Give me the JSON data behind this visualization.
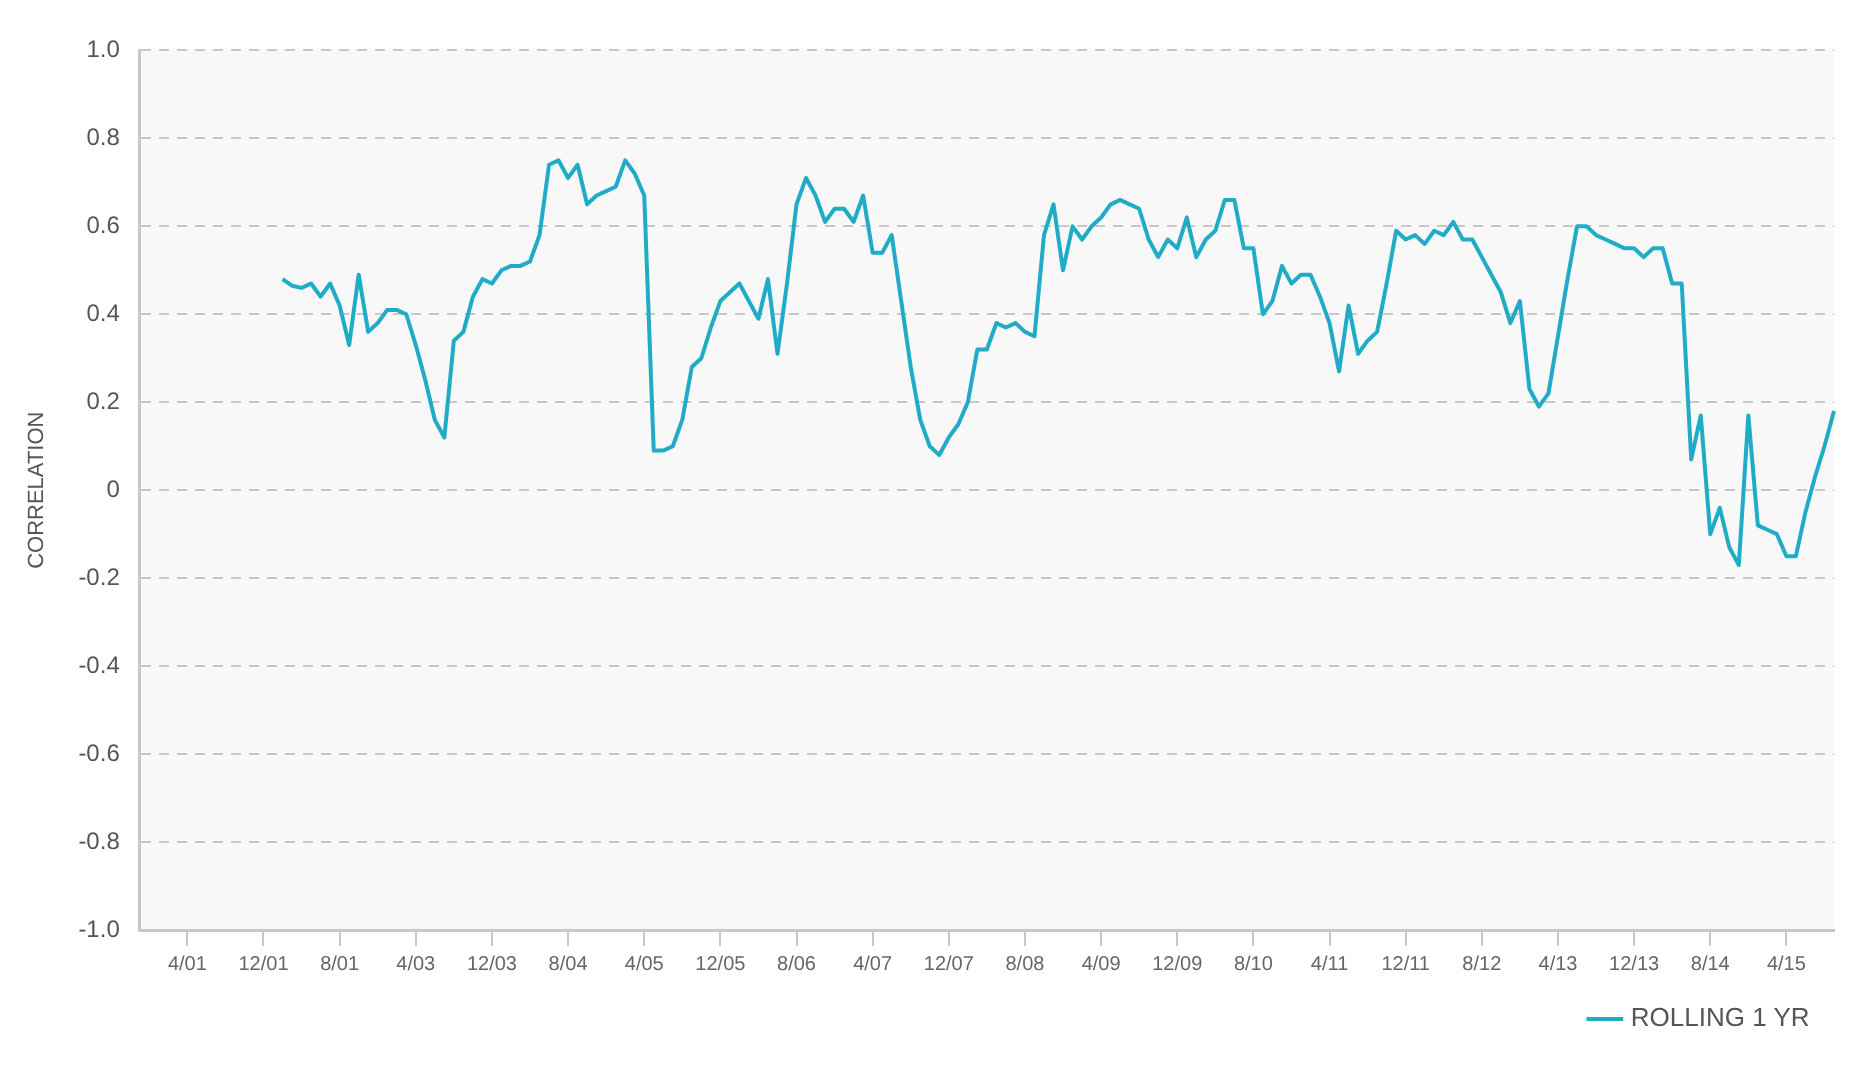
{
  "chart_data": {
    "type": "line",
    "ylabel": "CORRELATION",
    "categories": [
      null,
      null,
      null,
      null,
      null,
      "4/01",
      null,
      null,
      null,
      null,
      null,
      null,
      null,
      "12/01",
      null,
      null,
      null,
      null,
      null,
      null,
      null,
      "8/01",
      null,
      null,
      null,
      null,
      null,
      null,
      null,
      "4/03",
      null,
      null,
      null,
      null,
      null,
      null,
      null,
      "12/03",
      null,
      null,
      null,
      null,
      null,
      null,
      null,
      "8/04",
      null,
      null,
      null,
      null,
      null,
      null,
      null,
      "4/05",
      null,
      null,
      null,
      null,
      null,
      null,
      null,
      "12/05",
      null,
      null,
      null,
      null,
      null,
      null,
      null,
      "8/06",
      null,
      null,
      null,
      null,
      null,
      null,
      null,
      "4/07",
      null,
      null,
      null,
      null,
      null,
      null,
      null,
      "12/07",
      null,
      null,
      null,
      null,
      null,
      null,
      null,
      "8/08",
      null,
      null,
      null,
      null,
      null,
      null,
      null,
      "4/09",
      null,
      null,
      null,
      null,
      null,
      null,
      null,
      "12/09",
      null,
      null,
      null,
      null,
      null,
      null,
      null,
      "8/10",
      null,
      null,
      null,
      null,
      null,
      null,
      null,
      "4/11",
      null,
      null,
      null,
      null,
      null,
      null,
      null,
      "12/11",
      null,
      null,
      null,
      null,
      null,
      null,
      null,
      "8/12",
      null,
      null,
      null,
      null,
      null,
      null,
      null,
      "4/13",
      null,
      null,
      null,
      null,
      null,
      null,
      null,
      "12/13",
      null,
      null,
      null,
      null,
      null,
      null,
      null,
      "8/14",
      null,
      null,
      null,
      null,
      null,
      null,
      null,
      "4/15",
      null,
      null,
      null,
      null,
      null
    ],
    "series": [
      {
        "name": "ROLLING 1 YR",
        "color": "#20abc6",
        "values": [
          null,
          null,
          null,
          null,
          null,
          null,
          null,
          null,
          null,
          null,
          null,
          null,
          null,
          null,
          null,
          0.48,
          0.465,
          0.46,
          0.47,
          0.44,
          0.47,
          0.42,
          0.33,
          0.49,
          0.36,
          0.38,
          0.41,
          0.41,
          0.4,
          0.33,
          0.25,
          0.16,
          0.12,
          0.34,
          0.36,
          0.44,
          0.48,
          0.47,
          0.5,
          0.51,
          0.51,
          0.52,
          0.58,
          0.74,
          0.75,
          0.71,
          0.74,
          0.65,
          0.67,
          0.68,
          0.69,
          0.75,
          0.72,
          0.67,
          0.09,
          0.09,
          0.1,
          0.16,
          0.28,
          0.3,
          0.37,
          0.43,
          0.45,
          0.47,
          0.43,
          0.39,
          0.48,
          0.31,
          0.47,
          0.65,
          0.71,
          0.67,
          0.61,
          0.64,
          0.64,
          0.61,
          0.67,
          0.54,
          0.54,
          0.58,
          0.43,
          0.28,
          0.16,
          0.1,
          0.08,
          0.12,
          0.15,
          0.2,
          0.32,
          0.32,
          0.38,
          0.37,
          0.38,
          0.36,
          0.35,
          0.58,
          0.65,
          0.5,
          0.6,
          0.57,
          0.6,
          0.62,
          0.65,
          0.66,
          0.65,
          0.64,
          0.57,
          0.53,
          0.57,
          0.55,
          0.62,
          0.53,
          0.57,
          0.59,
          0.66,
          0.66,
          0.55,
          0.55,
          0.4,
          0.43,
          0.51,
          0.47,
          0.49,
          0.49,
          0.44,
          0.38,
          0.27,
          0.42,
          0.31,
          0.34,
          0.36,
          0.47,
          0.59,
          0.57,
          0.58,
          0.56,
          0.59,
          0.58,
          0.61,
          0.57,
          0.57,
          0.53,
          0.49,
          0.45,
          0.38,
          0.43,
          0.23,
          0.19,
          0.22,
          0.35,
          0.48,
          0.6,
          0.6,
          0.58,
          0.57,
          0.56,
          0.55,
          0.55,
          0.53,
          0.55,
          0.55,
          0.47,
          0.47,
          0.07,
          0.17,
          -0.1,
          -0.04,
          -0.13,
          -0.17,
          0.17,
          -0.08,
          -0.09,
          -0.1,
          -0.15,
          -0.15,
          -0.05,
          0.03,
          0.1,
          0.18
        ]
      }
    ],
    "ylim": [
      -1,
      1
    ],
    "yticks": [
      {
        "value": -1,
        "label": "-1.0"
      },
      -0.8,
      -0.6,
      -0.4,
      -0.2,
      0,
      0.2,
      0.4,
      0.6,
      0.8,
      {
        "value": 1,
        "label": "1.0"
      }
    ],
    "grid": "y",
    "legend": "bottom right",
    "marker": "none",
    "line_style": "solid"
  }
}
